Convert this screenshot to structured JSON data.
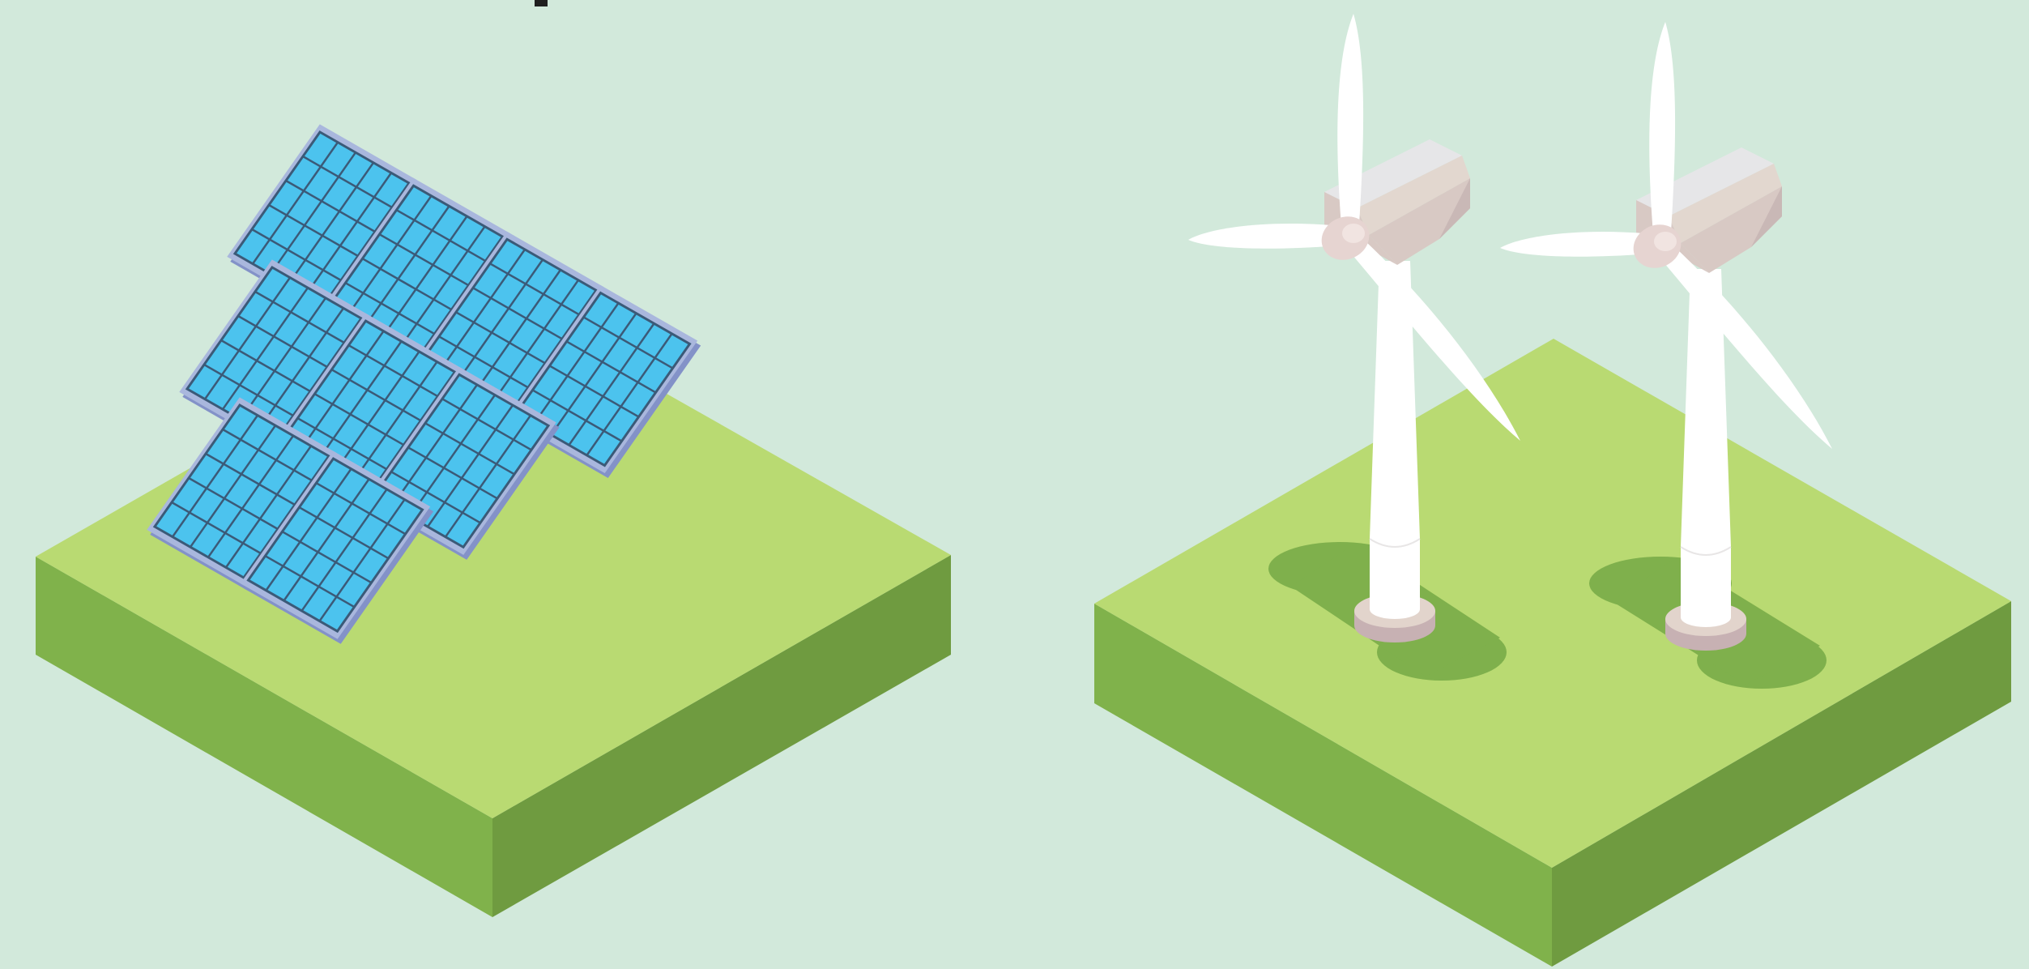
{
  "palette": {
    "background": "#d2e9db",
    "grass_top": "#b9da72",
    "grass_left": "#80b24b",
    "grass_right": "#6f9b40",
    "grass_shadow": "#7fb04c",
    "panel_cell": "#4cc3ee",
    "panel_grid": "#3b5a78",
    "panel_frame": "#a9b7dd",
    "panel_frame_edge": "#8392c8",
    "turbine_white": "#ffffff",
    "turbine_shade": "#e8e6e6",
    "nacelle_light": "#e6e6e8",
    "nacelle_tan": "#e2d7cf",
    "nacelle_pink": "#d8c9c4",
    "nacelle_dark": "#c9b8b6",
    "hub": "#e6d4d1",
    "base_top": "#e2d4cc",
    "base_side": "#c7b1b3",
    "dark_fragment": "#1f1f1f"
  },
  "scene": {
    "solar_platform": {
      "panel_rows": 3,
      "panels_per_row": [
        4,
        3,
        2
      ],
      "cell_columns": 5,
      "cell_rows": 5
    },
    "wind_platform": {
      "turbines": 2,
      "blades_per_turbine": 3
    }
  }
}
